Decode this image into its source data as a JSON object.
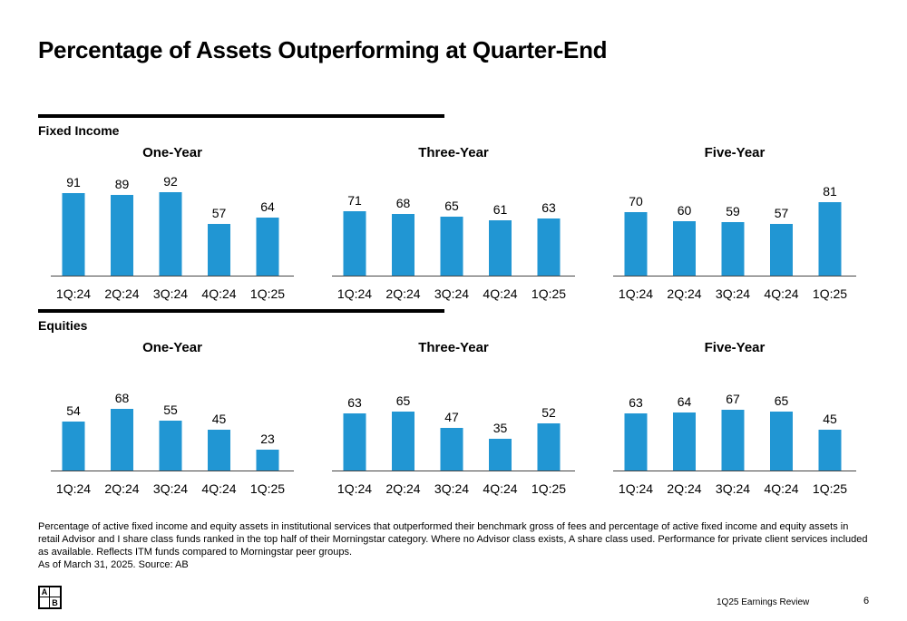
{
  "title": "Percentage of Assets Outperforming at Quarter-End",
  "sections": {
    "fixed_income": "Fixed Income",
    "equities": "Equities"
  },
  "accent_color": "#2196D3",
  "chart_data": [
    {
      "type": "bar",
      "group": "Fixed Income",
      "title": "One-Year",
      "categories": [
        "1Q:24",
        "2Q:24",
        "3Q:24",
        "4Q:24",
        "1Q:25"
      ],
      "values": [
        91,
        89,
        92,
        57,
        64
      ],
      "ylim": [
        0,
        100
      ]
    },
    {
      "type": "bar",
      "group": "Fixed Income",
      "title": "Three-Year",
      "categories": [
        "1Q:24",
        "2Q:24",
        "3Q:24",
        "4Q:24",
        "1Q:25"
      ],
      "values": [
        71,
        68,
        65,
        61,
        63
      ],
      "ylim": [
        0,
        100
      ]
    },
    {
      "type": "bar",
      "group": "Fixed Income",
      "title": "Five-Year",
      "categories": [
        "1Q:24",
        "2Q:24",
        "3Q:24",
        "4Q:24",
        "1Q:25"
      ],
      "values": [
        70,
        60,
        59,
        57,
        81
      ],
      "ylim": [
        0,
        100
      ]
    },
    {
      "type": "bar",
      "group": "Equities",
      "title": "One-Year",
      "categories": [
        "1Q:24",
        "2Q:24",
        "3Q:24",
        "4Q:24",
        "1Q:25"
      ],
      "values": [
        54,
        68,
        55,
        45,
        23
      ],
      "ylim": [
        0,
        100
      ]
    },
    {
      "type": "bar",
      "group": "Equities",
      "title": "Three-Year",
      "categories": [
        "1Q:24",
        "2Q:24",
        "3Q:24",
        "4Q:24",
        "1Q:25"
      ],
      "values": [
        63,
        65,
        47,
        35,
        52
      ],
      "ylim": [
        0,
        100
      ]
    },
    {
      "type": "bar",
      "group": "Equities",
      "title": "Five-Year",
      "categories": [
        "1Q:24",
        "2Q:24",
        "3Q:24",
        "4Q:24",
        "1Q:25"
      ],
      "values": [
        63,
        64,
        67,
        65,
        45
      ],
      "ylim": [
        0,
        100
      ]
    }
  ],
  "footnote": {
    "body": "Percentage of active fixed income and equity assets in institutional services that outperformed their benchmark gross of fees and percentage of active fixed income and equity assets in retail Advisor and I share class funds ranked in the top half of their Morningstar category. Where no Advisor class exists, A share class used. Performance for private client services included as available. Reflects ITM funds compared to Morningstar peer groups.",
    "source": "As of March 31, 2025. Source: AB"
  },
  "logo": {
    "top_left": "A",
    "bottom_right": "B"
  },
  "footer": {
    "label": "1Q25 Earnings Review",
    "page": "6"
  }
}
